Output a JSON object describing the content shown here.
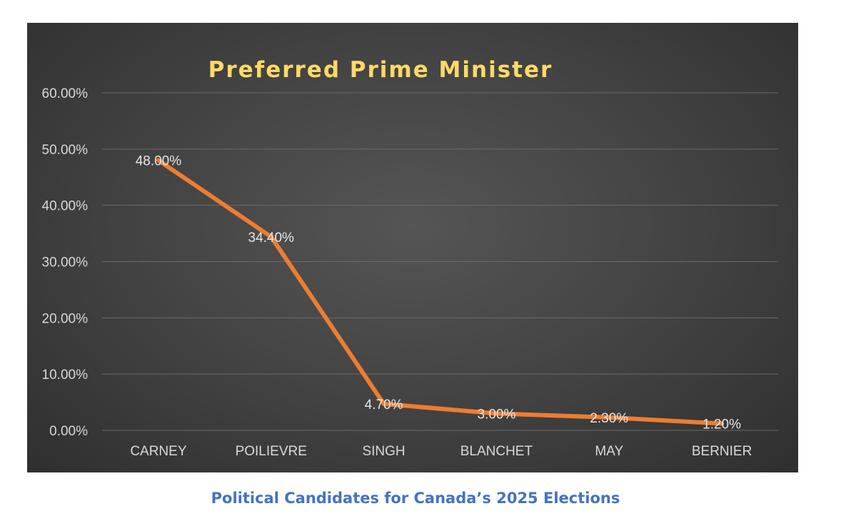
{
  "caption": "Political Candidates for Canada’s 2025 Elections",
  "colors": {
    "line": "#ed7d31",
    "title": "#ffd966",
    "caption": "#4472c4",
    "background": "#404040"
  },
  "chart_data": {
    "type": "line",
    "title": "Preferred Prime Minister",
    "xlabel": "",
    "ylabel": "",
    "categories": [
      "CARNEY",
      "POILIEVRE",
      "SINGH",
      "BLANCHET",
      "MAY",
      "BERNIER"
    ],
    "values": [
      48.0,
      34.4,
      4.7,
      3.0,
      2.3,
      1.2
    ],
    "data_labels": [
      "48.00%",
      "34.40%",
      "4.70%",
      "3.00%",
      "2.30%",
      "1.20%"
    ],
    "ylim": [
      0,
      60
    ],
    "yticks": [
      0,
      10,
      20,
      30,
      40,
      50,
      60
    ],
    "ytick_labels": [
      "0.00%",
      "10.00%",
      "20.00%",
      "30.00%",
      "40.00%",
      "50.00%",
      "60.00%"
    ],
    "grid": true,
    "legend": "none"
  }
}
